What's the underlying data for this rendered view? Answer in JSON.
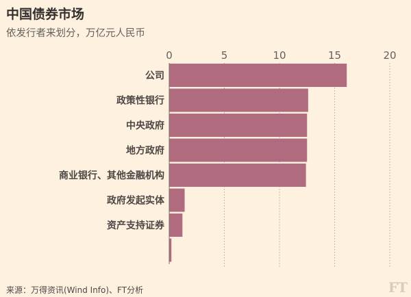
{
  "title": "中国债券市场",
  "subtitle": "依发行者来划分，万亿元人民币",
  "source": "来源：万得资讯(Wind Info)、FT分析",
  "logo": "FT",
  "colors": {
    "bar": "#b06b7e",
    "background": "#fff1e0",
    "grid": "#b3a9a0"
  },
  "chart_data": {
    "type": "bar",
    "orientation": "horizontal",
    "title": "中国债券市场",
    "subtitle": "依发行者来划分，万亿元人民币",
    "categories": [
      "公司",
      "政策性银行",
      "中央政府",
      "地方政府",
      "商业银行、其他金融机构",
      "政府发起实体",
      "资产支持证券",
      ""
    ],
    "values": [
      16.1,
      12.6,
      12.5,
      12.5,
      12.4,
      1.4,
      1.2,
      0.2
    ],
    "xlim": [
      0,
      20
    ],
    "xticks": [
      0,
      5,
      10,
      15,
      20
    ],
    "xaxis_position": "top",
    "grid": true,
    "legend": "none"
  }
}
